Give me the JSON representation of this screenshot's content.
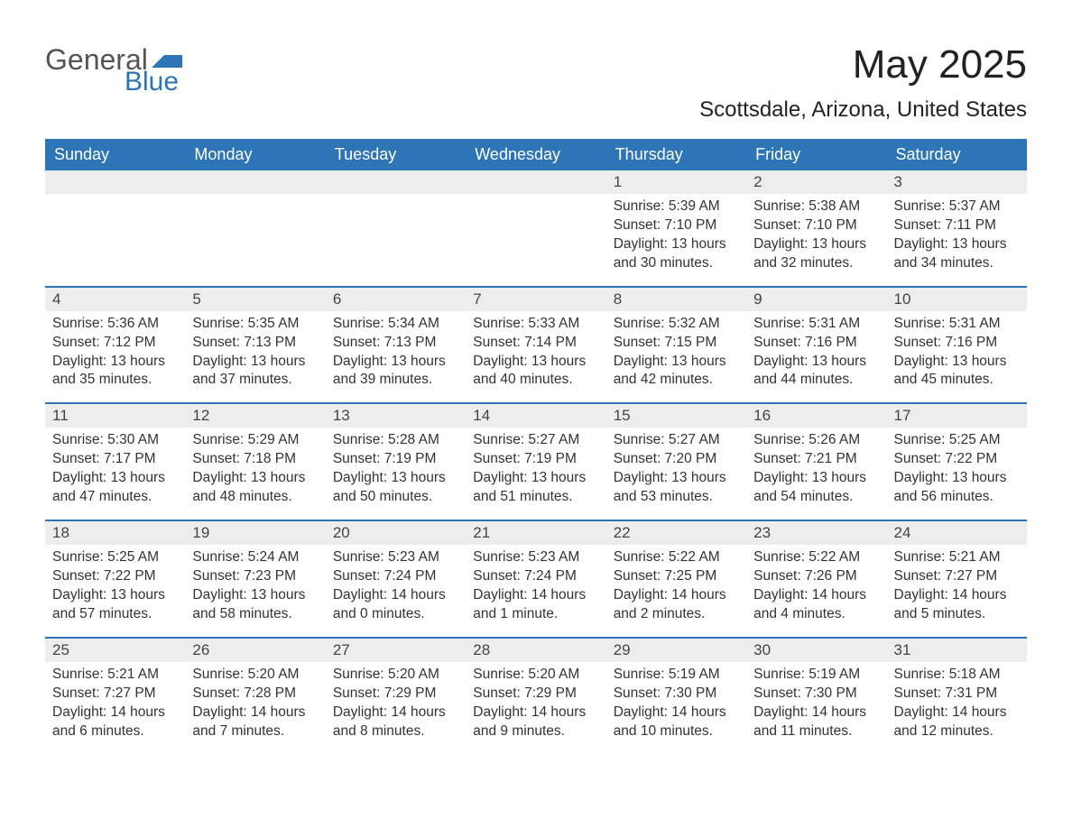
{
  "brand": {
    "general": "General",
    "blue": "Blue",
    "flag_color": "#2d75b6"
  },
  "title": "May 2025",
  "location": "Scottsdale, Arizona, United States",
  "colors": {
    "header_bg": "#2d75b6",
    "header_text": "#ffffff",
    "daynum_bg": "#ededed",
    "text": "#333333",
    "week_divider": "#2d75b6"
  },
  "day_names": [
    "Sunday",
    "Monday",
    "Tuesday",
    "Wednesday",
    "Thursday",
    "Friday",
    "Saturday"
  ],
  "weeks": [
    [
      {
        "day": "",
        "sunrise": "",
        "sunset": "",
        "daylight": ""
      },
      {
        "day": "",
        "sunrise": "",
        "sunset": "",
        "daylight": ""
      },
      {
        "day": "",
        "sunrise": "",
        "sunset": "",
        "daylight": ""
      },
      {
        "day": "",
        "sunrise": "",
        "sunset": "",
        "daylight": ""
      },
      {
        "day": "1",
        "sunrise": "Sunrise: 5:39 AM",
        "sunset": "Sunset: 7:10 PM",
        "daylight": "Daylight: 13 hours and 30 minutes."
      },
      {
        "day": "2",
        "sunrise": "Sunrise: 5:38 AM",
        "sunset": "Sunset: 7:10 PM",
        "daylight": "Daylight: 13 hours and 32 minutes."
      },
      {
        "day": "3",
        "sunrise": "Sunrise: 5:37 AM",
        "sunset": "Sunset: 7:11 PM",
        "daylight": "Daylight: 13 hours and 34 minutes."
      }
    ],
    [
      {
        "day": "4",
        "sunrise": "Sunrise: 5:36 AM",
        "sunset": "Sunset: 7:12 PM",
        "daylight": "Daylight: 13 hours and 35 minutes."
      },
      {
        "day": "5",
        "sunrise": "Sunrise: 5:35 AM",
        "sunset": "Sunset: 7:13 PM",
        "daylight": "Daylight: 13 hours and 37 minutes."
      },
      {
        "day": "6",
        "sunrise": "Sunrise: 5:34 AM",
        "sunset": "Sunset: 7:13 PM",
        "daylight": "Daylight: 13 hours and 39 minutes."
      },
      {
        "day": "7",
        "sunrise": "Sunrise: 5:33 AM",
        "sunset": "Sunset: 7:14 PM",
        "daylight": "Daylight: 13 hours and 40 minutes."
      },
      {
        "day": "8",
        "sunrise": "Sunrise: 5:32 AM",
        "sunset": "Sunset: 7:15 PM",
        "daylight": "Daylight: 13 hours and 42 minutes."
      },
      {
        "day": "9",
        "sunrise": "Sunrise: 5:31 AM",
        "sunset": "Sunset: 7:16 PM",
        "daylight": "Daylight: 13 hours and 44 minutes."
      },
      {
        "day": "10",
        "sunrise": "Sunrise: 5:31 AM",
        "sunset": "Sunset: 7:16 PM",
        "daylight": "Daylight: 13 hours and 45 minutes."
      }
    ],
    [
      {
        "day": "11",
        "sunrise": "Sunrise: 5:30 AM",
        "sunset": "Sunset: 7:17 PM",
        "daylight": "Daylight: 13 hours and 47 minutes."
      },
      {
        "day": "12",
        "sunrise": "Sunrise: 5:29 AM",
        "sunset": "Sunset: 7:18 PM",
        "daylight": "Daylight: 13 hours and 48 minutes."
      },
      {
        "day": "13",
        "sunrise": "Sunrise: 5:28 AM",
        "sunset": "Sunset: 7:19 PM",
        "daylight": "Daylight: 13 hours and 50 minutes."
      },
      {
        "day": "14",
        "sunrise": "Sunrise: 5:27 AM",
        "sunset": "Sunset: 7:19 PM",
        "daylight": "Daylight: 13 hours and 51 minutes."
      },
      {
        "day": "15",
        "sunrise": "Sunrise: 5:27 AM",
        "sunset": "Sunset: 7:20 PM",
        "daylight": "Daylight: 13 hours and 53 minutes."
      },
      {
        "day": "16",
        "sunrise": "Sunrise: 5:26 AM",
        "sunset": "Sunset: 7:21 PM",
        "daylight": "Daylight: 13 hours and 54 minutes."
      },
      {
        "day": "17",
        "sunrise": "Sunrise: 5:25 AM",
        "sunset": "Sunset: 7:22 PM",
        "daylight": "Daylight: 13 hours and 56 minutes."
      }
    ],
    [
      {
        "day": "18",
        "sunrise": "Sunrise: 5:25 AM",
        "sunset": "Sunset: 7:22 PM",
        "daylight": "Daylight: 13 hours and 57 minutes."
      },
      {
        "day": "19",
        "sunrise": "Sunrise: 5:24 AM",
        "sunset": "Sunset: 7:23 PM",
        "daylight": "Daylight: 13 hours and 58 minutes."
      },
      {
        "day": "20",
        "sunrise": "Sunrise: 5:23 AM",
        "sunset": "Sunset: 7:24 PM",
        "daylight": "Daylight: 14 hours and 0 minutes."
      },
      {
        "day": "21",
        "sunrise": "Sunrise: 5:23 AM",
        "sunset": "Sunset: 7:24 PM",
        "daylight": "Daylight: 14 hours and 1 minute."
      },
      {
        "day": "22",
        "sunrise": "Sunrise: 5:22 AM",
        "sunset": "Sunset: 7:25 PM",
        "daylight": "Daylight: 14 hours and 2 minutes."
      },
      {
        "day": "23",
        "sunrise": "Sunrise: 5:22 AM",
        "sunset": "Sunset: 7:26 PM",
        "daylight": "Daylight: 14 hours and 4 minutes."
      },
      {
        "day": "24",
        "sunrise": "Sunrise: 5:21 AM",
        "sunset": "Sunset: 7:27 PM",
        "daylight": "Daylight: 14 hours and 5 minutes."
      }
    ],
    [
      {
        "day": "25",
        "sunrise": "Sunrise: 5:21 AM",
        "sunset": "Sunset: 7:27 PM",
        "daylight": "Daylight: 14 hours and 6 minutes."
      },
      {
        "day": "26",
        "sunrise": "Sunrise: 5:20 AM",
        "sunset": "Sunset: 7:28 PM",
        "daylight": "Daylight: 14 hours and 7 minutes."
      },
      {
        "day": "27",
        "sunrise": "Sunrise: 5:20 AM",
        "sunset": "Sunset: 7:29 PM",
        "daylight": "Daylight: 14 hours and 8 minutes."
      },
      {
        "day": "28",
        "sunrise": "Sunrise: 5:20 AM",
        "sunset": "Sunset: 7:29 PM",
        "daylight": "Daylight: 14 hours and 9 minutes."
      },
      {
        "day": "29",
        "sunrise": "Sunrise: 5:19 AM",
        "sunset": "Sunset: 7:30 PM",
        "daylight": "Daylight: 14 hours and 10 minutes."
      },
      {
        "day": "30",
        "sunrise": "Sunrise: 5:19 AM",
        "sunset": "Sunset: 7:30 PM",
        "daylight": "Daylight: 14 hours and 11 minutes."
      },
      {
        "day": "31",
        "sunrise": "Sunrise: 5:18 AM",
        "sunset": "Sunset: 7:31 PM",
        "daylight": "Daylight: 14 hours and 12 minutes."
      }
    ]
  ]
}
